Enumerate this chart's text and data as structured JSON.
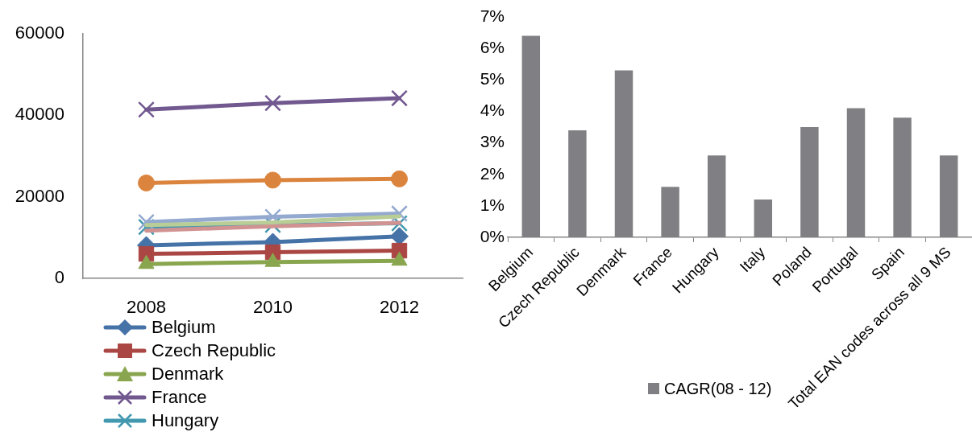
{
  "chart_data": [
    {
      "type": "line",
      "categories": [
        "2008",
        "2010",
        "2012"
      ],
      "series": [
        {
          "name": "Belgium",
          "color": "#4572a7",
          "marker": "diamond",
          "values": [
            8100,
            8900,
            10300
          ]
        },
        {
          "name": "Czech Republic",
          "color": "#aa4643",
          "marker": "square",
          "values": [
            6000,
            6400,
            6800
          ]
        },
        {
          "name": "Denmark",
          "color": "#89a54e",
          "marker": "triangle",
          "values": [
            3500,
            4000,
            4300
          ]
        },
        {
          "name": "France",
          "color": "#71588f",
          "marker": "cross",
          "values": [
            41400,
            43000,
            44200
          ]
        },
        {
          "name": "Hungary",
          "color": "#4198af",
          "marker": "cross",
          "values": [
            12600,
            13100,
            13500
          ]
        },
        {
          "color": "#db843d",
          "marker": "circle",
          "values": [
            23400,
            24100,
            24400
          ]
        },
        {
          "color": "#93a9cf",
          "marker": "cross",
          "values": [
            13800,
            15100,
            15900
          ]
        },
        {
          "color": "#d19392",
          "marker": "none",
          "values": [
            11700,
            12800,
            13600
          ]
        },
        {
          "color": "#b9cd96",
          "marker": "none",
          "values": [
            13100,
            13700,
            15200
          ]
        }
      ],
      "ylim": [
        0,
        60000
      ],
      "yticks": [
        0,
        20000,
        40000,
        60000
      ],
      "legend": "bottom"
    },
    {
      "type": "bar",
      "categories": [
        "Belgium",
        "Czech Republic",
        "Denmark",
        "France",
        "Hungary",
        "Italy",
        "Poland",
        "Portugal",
        "Spain",
        "Total EAN codes across all 9 MS"
      ],
      "series": [
        {
          "name": "CAGR(08 - 12)",
          "color": "#808084",
          "values": [
            6.4,
            3.4,
            5.3,
            1.6,
            2.6,
            1.2,
            3.5,
            4.1,
            3.8,
            2.6
          ]
        }
      ],
      "ylim": [
        0,
        7
      ],
      "yticks": [
        {
          "value": 0,
          "label": "0%"
        },
        {
          "value": 1,
          "label": "1%"
        },
        {
          "value": 2,
          "label": "2%"
        },
        {
          "value": 3,
          "label": "3%"
        },
        {
          "value": 4,
          "label": "4%"
        },
        {
          "value": 5,
          "label": "5%"
        },
        {
          "value": 6,
          "label": "6%"
        },
        {
          "value": 7,
          "label": "7%"
        }
      ],
      "legend": "bottom"
    }
  ]
}
